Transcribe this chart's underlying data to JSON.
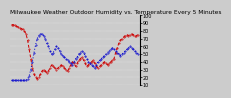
{
  "title": "Milwaukee Weather Outdoor Humidity vs. Temperature Every 5 Minutes",
  "bg_color": "#cccccc",
  "plot_bg": "#cccccc",
  "grid_color": "#ffffff",
  "red_color": "#cc0000",
  "blue_color": "#0000cc",
  "red_y": [
    88,
    88,
    87,
    86,
    85,
    84,
    83,
    82,
    80,
    76,
    68,
    56,
    44,
    32,
    24,
    20,
    18,
    20,
    24,
    28,
    30,
    28,
    26,
    28,
    32,
    36,
    34,
    32,
    30,
    32,
    34,
    36,
    34,
    32,
    30,
    28,
    32,
    36,
    40,
    38,
    34,
    38,
    42,
    44,
    46,
    42,
    38,
    34,
    36,
    38,
    40,
    42,
    38,
    34,
    32,
    34,
    36,
    38,
    40,
    38,
    36,
    38,
    40,
    42,
    44,
    52,
    58,
    64,
    68,
    70,
    72,
    74,
    75,
    74,
    75,
    76,
    75,
    74,
    74,
    75
  ],
  "blue_y": [
    16,
    16,
    16,
    16,
    16,
    16,
    16,
    16,
    16,
    16,
    18,
    22,
    30,
    40,
    52,
    62,
    70,
    74,
    76,
    76,
    74,
    70,
    64,
    60,
    54,
    50,
    52,
    56,
    60,
    58,
    54,
    50,
    48,
    46,
    44,
    42,
    40,
    38,
    36,
    40,
    44,
    46,
    50,
    52,
    54,
    52,
    48,
    44,
    40,
    38,
    36,
    34,
    32,
    36,
    40,
    42,
    44,
    46,
    48,
    50,
    52,
    54,
    56,
    58,
    56,
    54,
    52,
    50,
    48,
    50,
    52,
    54,
    56,
    58,
    60,
    58,
    56,
    54,
    52,
    50
  ],
  "ylim": [
    10,
    100
  ],
  "yticks": [
    10,
    20,
    30,
    40,
    50,
    60,
    70,
    80,
    90,
    100
  ],
  "ytick_labels": [
    "10",
    "20",
    "30",
    "40",
    "50",
    "60",
    "70",
    "80",
    "90",
    "100"
  ],
  "n_points": 80,
  "title_fontsize": 4.2,
  "tick_fontsize": 3.5,
  "linewidth": 0.7,
  "markersize": 0.8
}
